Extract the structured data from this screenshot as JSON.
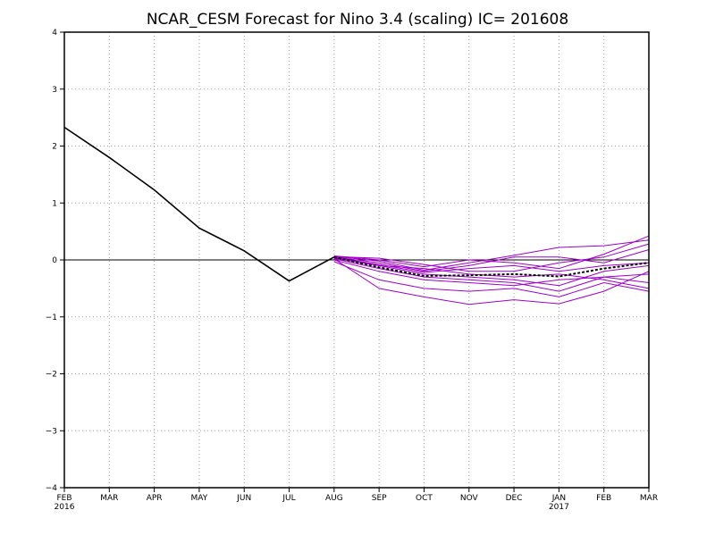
{
  "chart_data": {
    "type": "line",
    "title": "NCAR_CESM Forecast for Nino 3.4 (scaling)  IC= 201608",
    "xlabel": "",
    "ylabel": "",
    "categories": [
      "FEB",
      "MAR",
      "APR",
      "MAY",
      "JUN",
      "JUL",
      "AUG",
      "SEP",
      "OCT",
      "NOV",
      "DEC",
      "JAN",
      "FEB",
      "MAR"
    ],
    "year_labels": [
      {
        "category_index": 0,
        "label": "2016"
      },
      {
        "category_index": 11,
        "label": "2017"
      }
    ],
    "ylim": [
      -4,
      4
    ],
    "y_ticks": [
      -4,
      -3,
      -2,
      -1,
      0,
      1,
      2,
      3,
      4
    ],
    "grid": true,
    "zero_line": true,
    "colors": {
      "observed": "#000000",
      "members": "#a000c8",
      "ensemble_mean": "#000000"
    },
    "observed": {
      "x_index": [
        0,
        1,
        2,
        3,
        4,
        5,
        6
      ],
      "values": [
        2.33,
        1.8,
        1.23,
        0.56,
        0.16,
        -0.37,
        0.05
      ]
    },
    "ensemble_mean": {
      "style": "dashed",
      "x_index": [
        6,
        7,
        8,
        9,
        10,
        11,
        12,
        13
      ],
      "values": [
        0.05,
        -0.13,
        -0.28,
        -0.27,
        -0.25,
        -0.29,
        -0.15,
        -0.05
      ]
    },
    "members": {
      "x_index": [
        6,
        7,
        8,
        9,
        10,
        11,
        12,
        13
      ],
      "series": [
        {
          "values": [
            0.07,
            0.0,
            -0.12,
            0.0,
            -0.05,
            -0.15,
            0.1,
            0.42
          ]
        },
        {
          "values": [
            0.06,
            -0.02,
            -0.18,
            -0.05,
            0.08,
            0.22,
            0.25,
            0.35
          ]
        },
        {
          "values": [
            0.05,
            -0.05,
            -0.2,
            -0.1,
            0.05,
            0.05,
            -0.05,
            0.18
          ]
        },
        {
          "values": [
            0.04,
            -0.08,
            -0.22,
            -0.15,
            -0.1,
            -0.2,
            -0.1,
            -0.05
          ]
        },
        {
          "values": [
            0.03,
            -0.1,
            -0.25,
            -0.3,
            -0.35,
            -0.45,
            -0.2,
            -0.1
          ]
        },
        {
          "values": [
            0.02,
            -0.15,
            -0.3,
            -0.35,
            -0.4,
            -0.55,
            -0.3,
            -0.25
          ]
        },
        {
          "values": [
            0.0,
            -0.2,
            -0.35,
            -0.4,
            -0.45,
            -0.35,
            -0.3,
            -0.4
          ]
        },
        {
          "values": [
            0.05,
            -0.1,
            -0.15,
            -0.25,
            -0.3,
            -0.25,
            -0.35,
            -0.5
          ]
        },
        {
          "values": [
            -0.03,
            -0.35,
            -0.5,
            -0.55,
            -0.5,
            -0.65,
            -0.4,
            -0.55
          ]
        },
        {
          "values": [
            0.02,
            -0.5,
            -0.65,
            -0.78,
            -0.7,
            -0.77,
            -0.55,
            -0.2
          ]
        },
        {
          "values": [
            0.06,
            0.03,
            -0.08,
            -0.2,
            -0.2,
            -0.05,
            0.05,
            0.28
          ]
        }
      ]
    }
  }
}
